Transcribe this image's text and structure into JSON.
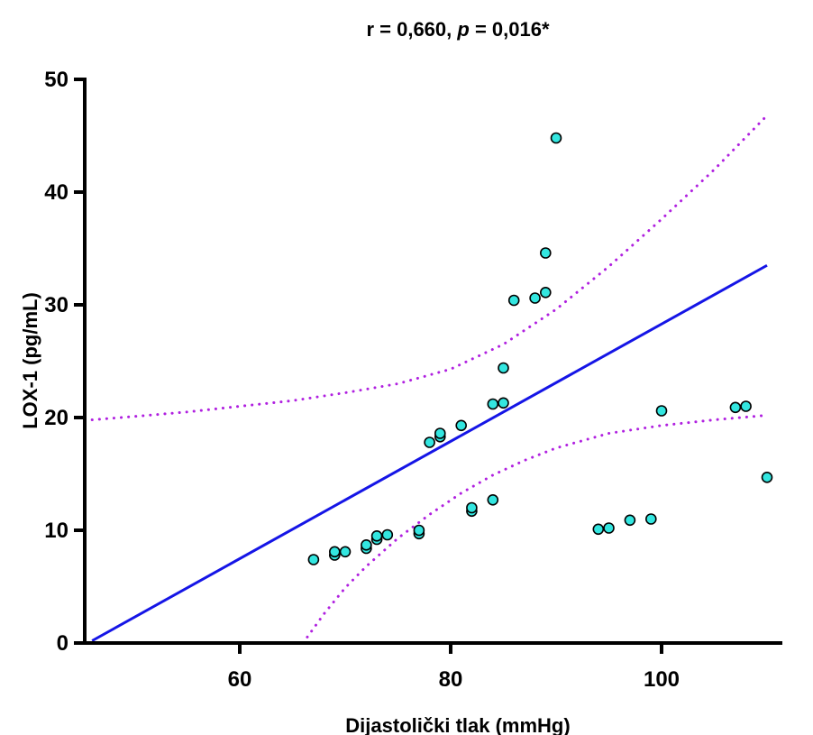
{
  "chart_data": {
    "type": "scatter",
    "title_parts": [
      "r = 0,660, ",
      "p",
      " = 0,016*"
    ],
    "xlabel": "Dijastolički tlak (mmHg)",
    "ylabel": "LOX-1 (pg/mL)",
    "xlim": [
      46,
      111
    ],
    "ylim": [
      0,
      50
    ],
    "x_ticks": [
      60,
      80,
      100
    ],
    "x_tick_labels": [
      "60",
      "80",
      "100"
    ],
    "y_ticks": [
      0,
      10,
      20,
      30,
      40,
      50
    ],
    "y_tick_labels": [
      "0",
      "10",
      "20",
      "30",
      "40",
      "50"
    ],
    "grid": false,
    "points": [
      {
        "x": 67,
        "y": 7.4
      },
      {
        "x": 69,
        "y": 7.8
      },
      {
        "x": 69,
        "y": 8.1
      },
      {
        "x": 70,
        "y": 8.1
      },
      {
        "x": 72,
        "y": 8.4
      },
      {
        "x": 72,
        "y": 8.7
      },
      {
        "x": 73,
        "y": 9.2
      },
      {
        "x": 73,
        "y": 9.5
      },
      {
        "x": 74,
        "y": 9.6
      },
      {
        "x": 77,
        "y": 9.7
      },
      {
        "x": 77,
        "y": 10.0
      },
      {
        "x": 78,
        "y": 17.8
      },
      {
        "x": 79,
        "y": 18.3
      },
      {
        "x": 79,
        "y": 18.6
      },
      {
        "x": 81,
        "y": 19.3
      },
      {
        "x": 82,
        "y": 11.7
      },
      {
        "x": 82,
        "y": 12.0
      },
      {
        "x": 84,
        "y": 12.7
      },
      {
        "x": 84,
        "y": 21.2
      },
      {
        "x": 85,
        "y": 21.3
      },
      {
        "x": 85,
        "y": 24.4
      },
      {
        "x": 86,
        "y": 30.4
      },
      {
        "x": 88,
        "y": 30.6
      },
      {
        "x": 89,
        "y": 31.1
      },
      {
        "x": 89,
        "y": 34.6
      },
      {
        "x": 90,
        "y": 44.8
      },
      {
        "x": 94,
        "y": 10.1
      },
      {
        "x": 95,
        "y": 10.2
      },
      {
        "x": 97,
        "y": 10.9
      },
      {
        "x": 99,
        "y": 11.0
      },
      {
        "x": 100,
        "y": 20.6
      },
      {
        "x": 107,
        "y": 20.9
      },
      {
        "x": 108,
        "y": 21.0
      },
      {
        "x": 110,
        "y": 14.7
      }
    ],
    "regression_line": {
      "x": [
        46,
        110
      ],
      "y": [
        0.2,
        33.5
      ],
      "color": "#1515e6"
    },
    "ci_upper": {
      "x": [
        46,
        50,
        55,
        60,
        65,
        70,
        75,
        80,
        85,
        90,
        95,
        100,
        105,
        110
      ],
      "y": [
        19.8,
        20.1,
        20.5,
        21.0,
        21.5,
        22.2,
        23.0,
        24.3,
        26.5,
        29.6,
        33.4,
        37.6,
        42.0,
        46.8
      ]
    },
    "ci_lower": {
      "x": [
        66,
        68,
        70,
        72,
        75,
        78,
        81,
        84,
        87,
        90,
        95,
        100,
        105,
        110
      ],
      "y": [
        0.0,
        2.6,
        4.9,
        6.8,
        9.3,
        11.4,
        13.3,
        14.9,
        16.2,
        17.3,
        18.6,
        19.3,
        19.8,
        20.2
      ],
      "color": "#b020e0"
    },
    "point_color": "#33e6e0"
  }
}
